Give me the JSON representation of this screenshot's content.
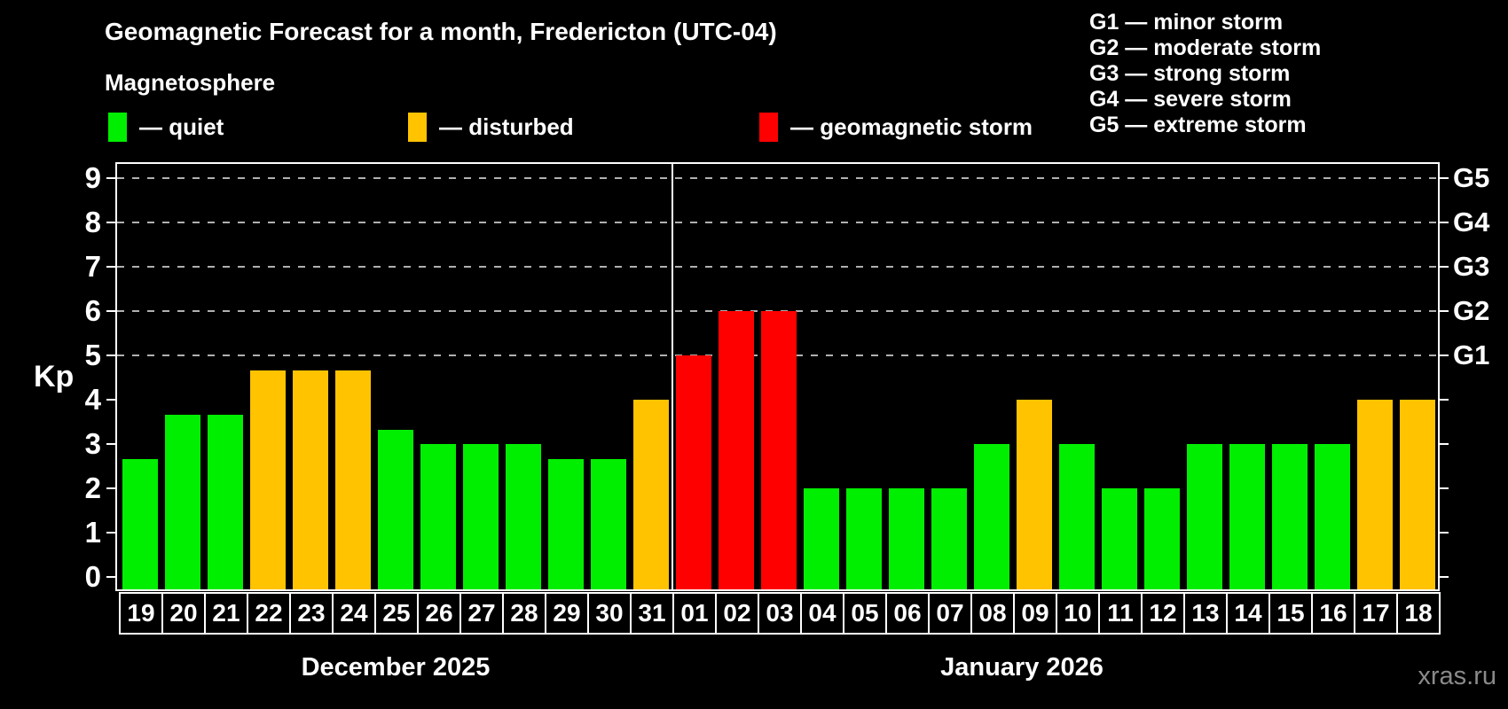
{
  "header": {
    "title": "Geomagnetic Forecast for a month, Fredericton (UTC-04)",
    "subtitle": "Magnetosphere",
    "legend": [
      {
        "key": "quiet",
        "label": "— quiet",
        "color": "#00ee00"
      },
      {
        "key": "disturbed",
        "label": "— disturbed",
        "color": "#ffc300"
      },
      {
        "key": "storm",
        "label": "— geomagnetic storm",
        "color": "#ff0000"
      }
    ],
    "g_scale_legend": [
      "G1 — minor storm",
      "G2 — moderate storm",
      "G3 — strong storm",
      "G4 — severe storm",
      "G5 — extreme storm"
    ]
  },
  "chart_data": {
    "type": "bar",
    "ylabel": "Kp",
    "ylim": [
      0,
      9
    ],
    "grid": "dashed horizontal lines at Kp 5-9",
    "y_ticks_left": [
      0,
      1,
      2,
      3,
      4,
      5,
      6,
      7,
      8,
      9
    ],
    "y_ticks_right": [
      {
        "kp": 5,
        "label": "G1"
      },
      {
        "kp": 6,
        "label": "G2"
      },
      {
        "kp": 7,
        "label": "G3"
      },
      {
        "kp": 8,
        "label": "G4"
      },
      {
        "kp": 9,
        "label": "G5"
      }
    ],
    "gridlines_kp": [
      5,
      6,
      7,
      8,
      9
    ],
    "colors": {
      "quiet": "#00ee00",
      "disturbed": "#ffc300",
      "storm": "#ff0000"
    },
    "months": [
      {
        "label": "December 2025",
        "days": [
          {
            "day": "19",
            "kp": 2.67,
            "status": "quiet"
          },
          {
            "day": "20",
            "kp": 3.67,
            "status": "quiet"
          },
          {
            "day": "21",
            "kp": 3.67,
            "status": "quiet"
          },
          {
            "day": "22",
            "kp": 4.67,
            "status": "disturbed"
          },
          {
            "day": "23",
            "kp": 4.67,
            "status": "disturbed"
          },
          {
            "day": "24",
            "kp": 4.67,
            "status": "disturbed"
          },
          {
            "day": "25",
            "kp": 3.33,
            "status": "quiet"
          },
          {
            "day": "26",
            "kp": 3.0,
            "status": "quiet"
          },
          {
            "day": "27",
            "kp": 3.0,
            "status": "quiet"
          },
          {
            "day": "28",
            "kp": 3.0,
            "status": "quiet"
          },
          {
            "day": "29",
            "kp": 2.67,
            "status": "quiet"
          },
          {
            "day": "30",
            "kp": 2.67,
            "status": "quiet"
          },
          {
            "day": "31",
            "kp": 4.0,
            "status": "disturbed"
          }
        ]
      },
      {
        "label": "January 2026",
        "days": [
          {
            "day": "01",
            "kp": 5.0,
            "status": "storm"
          },
          {
            "day": "02",
            "kp": 6.0,
            "status": "storm"
          },
          {
            "day": "03",
            "kp": 6.0,
            "status": "storm"
          },
          {
            "day": "04",
            "kp": 2.0,
            "status": "quiet"
          },
          {
            "day": "05",
            "kp": 2.0,
            "status": "quiet"
          },
          {
            "day": "06",
            "kp": 2.0,
            "status": "quiet"
          },
          {
            "day": "07",
            "kp": 2.0,
            "status": "quiet"
          },
          {
            "day": "08",
            "kp": 3.0,
            "status": "quiet"
          },
          {
            "day": "09",
            "kp": 4.0,
            "status": "disturbed"
          },
          {
            "day": "10",
            "kp": 3.0,
            "status": "quiet"
          },
          {
            "day": "11",
            "kp": 2.0,
            "status": "quiet"
          },
          {
            "day": "12",
            "kp": 2.0,
            "status": "quiet"
          },
          {
            "day": "13",
            "kp": 3.0,
            "status": "quiet"
          },
          {
            "day": "14",
            "kp": 3.0,
            "status": "quiet"
          },
          {
            "day": "15",
            "kp": 3.0,
            "status": "quiet"
          },
          {
            "day": "16",
            "kp": 3.0,
            "status": "quiet"
          },
          {
            "day": "17",
            "kp": 4.0,
            "status": "disturbed"
          },
          {
            "day": "18",
            "kp": 4.0,
            "status": "disturbed"
          }
        ]
      }
    ]
  },
  "watermark": "xras.ru"
}
